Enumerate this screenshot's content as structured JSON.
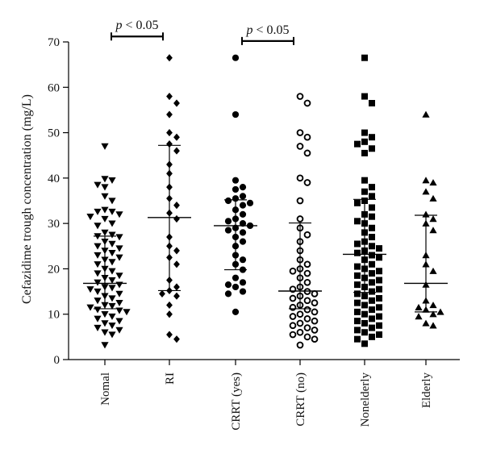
{
  "chart_data": {
    "type": "scatter",
    "ylabel": "Cefazidime trough concentration (mg/L)",
    "ylim": [
      0,
      70
    ],
    "yticks": [
      0,
      10,
      20,
      30,
      40,
      50,
      60,
      70
    ],
    "categories": [
      "Nomal",
      "RI",
      "CRRT (yes)",
      "CRRT (no)",
      "Nonelderly",
      "Elderly"
    ],
    "groups": [
      {
        "name": "Nomal",
        "marker": "triangle-down",
        "median": 16.8,
        "q1": 11.2,
        "q3": 27.2,
        "values": [
          47,
          39.8,
          39.5,
          38.5,
          38,
          36,
          35,
          33,
          32.6,
          32.6,
          32,
          31.5,
          31,
          30,
          29.5,
          28,
          27.5,
          27.2,
          27,
          26,
          25.5,
          25,
          24.5,
          24,
          23.5,
          23,
          22.5,
          22,
          21.5,
          21,
          20,
          19.5,
          19,
          18.5,
          18,
          17.5,
          17,
          16.5,
          16,
          15.8,
          15.5,
          15,
          14.5,
          14,
          13.5,
          13,
          12.5,
          12,
          11.8,
          11.5,
          11,
          10.8,
          10.5,
          10,
          9.5,
          9,
          8.5,
          8,
          7.5,
          7,
          6.5,
          6,
          5.5,
          3.2
        ]
      },
      {
        "name": "RI",
        "marker": "diamond",
        "median": 31.3,
        "q1": 15.2,
        "q3": 47.2,
        "values": [
          66.5,
          58,
          56.5,
          54,
          50,
          49,
          47.5,
          46,
          43,
          41,
          38,
          35.5,
          34,
          32.3,
          31,
          27,
          25,
          24,
          22.5,
          21,
          17.5,
          16,
          15.2,
          14.5,
          14,
          12,
          10,
          5.5,
          4.5
        ]
      },
      {
        "name": "CRRT (yes)",
        "marker": "circle",
        "median": 29.5,
        "q1": 19.8,
        "q3": 35.2,
        "values": [
          66.5,
          54,
          39.5,
          38,
          37.5,
          36,
          35.5,
          35,
          34.5,
          34,
          33,
          32,
          31,
          30.5,
          30,
          29.5,
          29,
          28.5,
          28,
          27,
          26,
          25,
          23,
          22,
          21,
          19.8,
          18,
          17,
          16.5,
          16,
          15,
          14.5,
          10.5
        ]
      },
      {
        "name": "CRRT (no)",
        "marker": "ring",
        "median": 15.1,
        "q1": 11.2,
        "q3": 30.1,
        "values": [
          58,
          56.5,
          50,
          49,
          47,
          45.5,
          40,
          39,
          35,
          31,
          29,
          27.5,
          26,
          24,
          22,
          21,
          20,
          19.5,
          19,
          18,
          17,
          16,
          15.5,
          15,
          14.5,
          14,
          13.5,
          13,
          12.5,
          12,
          11.5,
          11,
          10.5,
          10,
          9.5,
          9,
          8.5,
          8,
          7.5,
          7,
          6.5,
          6,
          5.5,
          5,
          4.5,
          3.2
        ]
      },
      {
        "name": "Nonelderly",
        "marker": "square",
        "median": 23.2,
        "q1": 14.8,
        "q3": 35.3,
        "values": [
          66.5,
          58,
          56.5,
          50,
          49,
          48,
          47.5,
          46.5,
          45.5,
          39.5,
          38,
          37,
          36,
          35,
          34.5,
          33.5,
          32,
          31.5,
          30.5,
          30,
          29,
          28,
          27,
          26,
          25.5,
          25,
          24.5,
          24,
          23.5,
          23,
          22.5,
          22,
          21,
          20.5,
          20,
          19.5,
          19,
          18.5,
          18,
          17.5,
          17,
          16.5,
          16,
          15.5,
          15,
          14.5,
          14,
          13.5,
          13,
          12.5,
          12,
          11.5,
          11,
          10.5,
          10,
          9.5,
          9,
          8.5,
          8,
          7.5,
          7,
          6.5,
          6,
          5.5,
          5,
          4.5,
          3.5
        ]
      },
      {
        "name": "Elderly",
        "marker": "triangle-up",
        "median": 16.8,
        "q1": 10.5,
        "q3": 31.8,
        "values": [
          54,
          39.5,
          39,
          37,
          35.5,
          32,
          31,
          30,
          28.5,
          23,
          21,
          19.5,
          16.5,
          13,
          12,
          11.5,
          11,
          10.5,
          10,
          9.5,
          8,
          7.5
        ]
      }
    ],
    "annotations": [
      {
        "from": 0,
        "to": 1,
        "y": 71.2,
        "text": "p < 0.05"
      },
      {
        "from": 2,
        "to": 3,
        "y": 70.2,
        "text": "p < 0.05"
      }
    ]
  }
}
